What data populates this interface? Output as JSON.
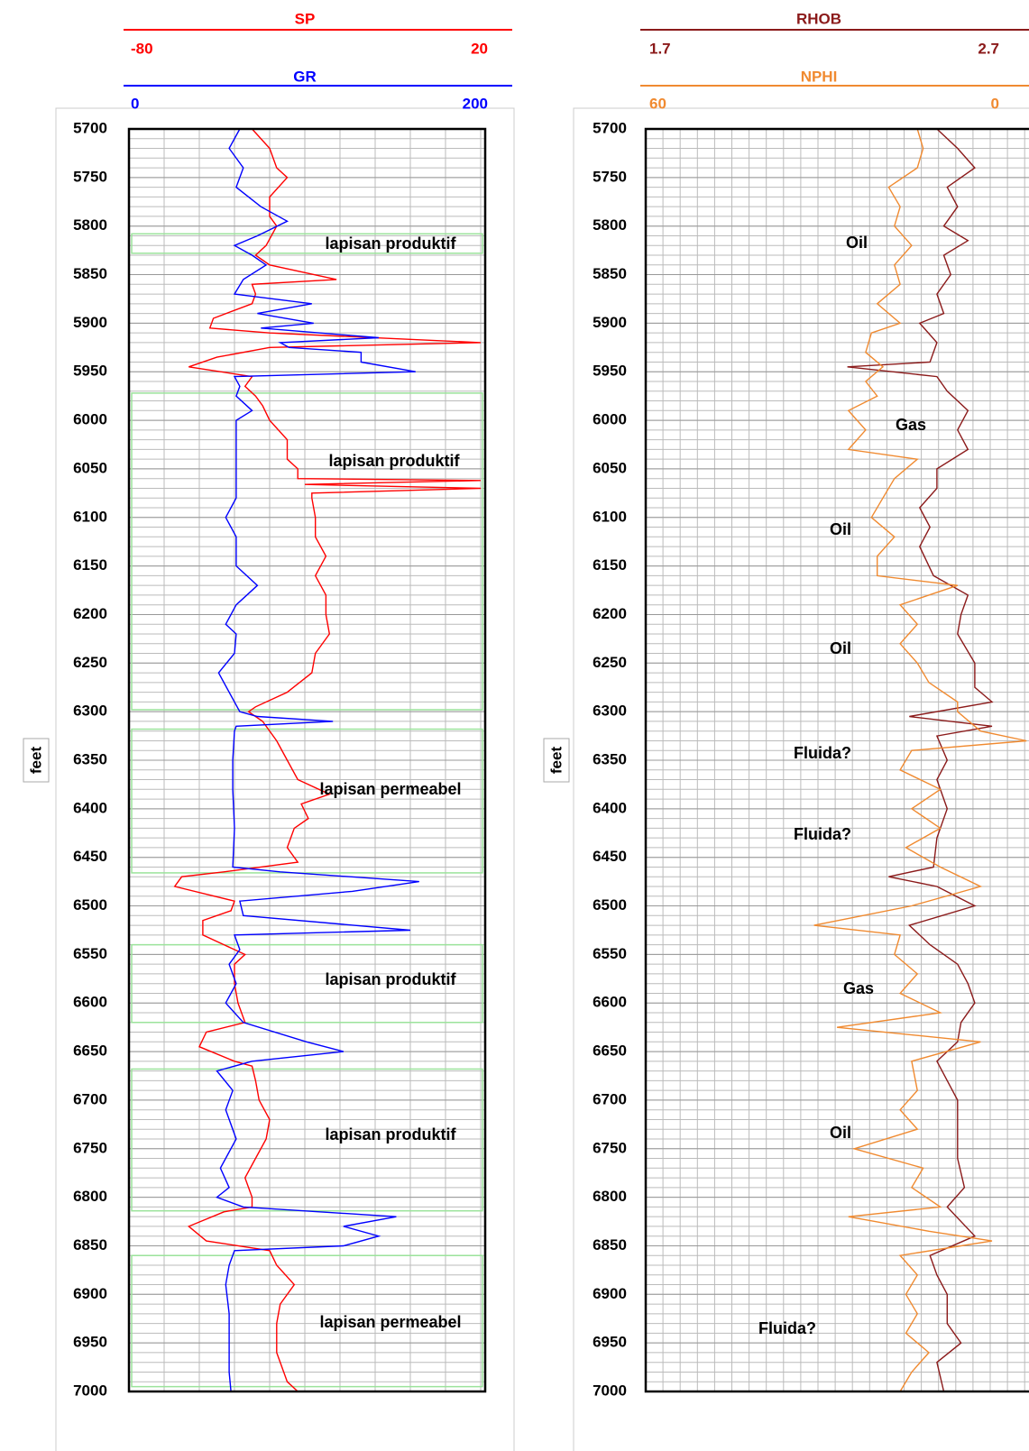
{
  "chart_data": [
    {
      "type": "well-log",
      "ylabel": "feet",
      "ylim": [
        5700,
        7000
      ],
      "yticks": [
        5700,
        5750,
        5800,
        5850,
        5900,
        5950,
        6000,
        6050,
        6100,
        6150,
        6200,
        6250,
        6300,
        6350,
        6400,
        6450,
        6500,
        6550,
        6600,
        6650,
        6700,
        6750,
        6800,
        6850,
        6900,
        6950,
        7000
      ],
      "zones": [
        [
          5808,
          5828
        ],
        [
          5972,
          6298
        ],
        [
          6318,
          6466
        ],
        [
          6540,
          6620
        ],
        [
          6668,
          6814
        ],
        [
          6860,
          6995
        ]
      ],
      "annotations": [
        "lapisan produktif",
        "lapisan produktif",
        "lapisan permeabel",
        "lapisan produktif",
        "lapisan produktif",
        "lapisan permeabel"
      ],
      "series": [
        {
          "name": "SP",
          "color": "#ff0000",
          "xlim": [
            -80,
            20
          ],
          "xticks": [
            -80,
            20
          ],
          "depth": [
            5700,
            5720,
            5740,
            5750,
            5770,
            5790,
            5800,
            5820,
            5830,
            5840,
            5855,
            5860,
            5870,
            5880,
            5895,
            5905,
            5910,
            5920,
            5925,
            5935,
            5945,
            5955,
            5965,
            5975,
            5985,
            6000,
            6020,
            6040,
            6050,
            6060,
            6062,
            6066,
            6070,
            6075,
            6080,
            6100,
            6120,
            6140,
            6160,
            6180,
            6200,
            6220,
            6240,
            6260,
            6280,
            6295,
            6300,
            6310,
            6330,
            6350,
            6370,
            6385,
            6395,
            6410,
            6420,
            6440,
            6455,
            6465,
            6470,
            6480,
            6495,
            6505,
            6515,
            6530,
            6540,
            6550,
            6560,
            6580,
            6600,
            6620,
            6630,
            6645,
            6660,
            6665,
            6680,
            6700,
            6720,
            6740,
            6760,
            6780,
            6800,
            6810,
            6815,
            6830,
            6845,
            6855,
            6870,
            6890,
            6910,
            6930,
            6960,
            6990,
            7000
          ],
          "values": [
            -45,
            -40,
            -38,
            -35,
            -40,
            -40,
            -38,
            -41,
            -44,
            -40,
            -21,
            -45,
            -44,
            -45,
            -56,
            -57,
            -40,
            20,
            -40,
            -55,
            -63,
            -45,
            -47,
            -44,
            -42,
            -40,
            -35,
            -35,
            -32,
            -32,
            20,
            -30,
            20,
            -28,
            -28,
            -27,
            -27,
            -24,
            -27,
            -24,
            -24,
            -23,
            -27,
            -28,
            -35,
            -44,
            -46,
            -42,
            -38,
            -35,
            -32,
            -23,
            -31,
            -29,
            -33,
            -35,
            -32,
            -53,
            -65,
            -67,
            -50,
            -51,
            -59,
            -59,
            -53,
            -47,
            -50,
            -50,
            -49,
            -47,
            -58,
            -60,
            -50,
            -45,
            -44,
            -43,
            -40,
            -41,
            -44,
            -47,
            -45,
            -45,
            -53,
            -63,
            -58,
            -40,
            -38,
            -33,
            -37,
            -38,
            -38,
            -35,
            -32
          ]
        },
        {
          "name": "GR",
          "color": "#0000ff",
          "xlim": [
            0,
            200
          ],
          "xticks": [
            0,
            200
          ],
          "depth": [
            5700,
            5720,
            5740,
            5760,
            5780,
            5795,
            5810,
            5820,
            5830,
            5840,
            5855,
            5870,
            5880,
            5890,
            5900,
            5905,
            5915,
            5920,
            5925,
            5930,
            5940,
            5950,
            5955,
            5965,
            5975,
            5990,
            6000,
            6050,
            6080,
            6100,
            6120,
            6150,
            6170,
            6190,
            6210,
            6220,
            6240,
            6260,
            6280,
            6300,
            6305,
            6310,
            6315,
            6320,
            6350,
            6380,
            6420,
            6460,
            6465,
            6475,
            6485,
            6495,
            6510,
            6525,
            6530,
            6545,
            6560,
            6580,
            6600,
            6620,
            6640,
            6650,
            6660,
            6670,
            6690,
            6710,
            6740,
            6770,
            6790,
            6800,
            6810,
            6820,
            6830,
            6840,
            6850,
            6855,
            6870,
            6890,
            6920,
            6950,
            6980,
            7000
          ],
          "values": [
            63,
            57,
            65,
            61,
            75,
            90,
            73,
            60,
            70,
            78,
            65,
            60,
            104,
            73,
            105,
            75,
            142,
            86,
            91,
            132,
            132,
            163,
            60,
            63,
            61,
            70,
            61,
            61,
            61,
            55,
            61,
            61,
            73,
            61,
            55,
            61,
            60,
            51,
            57,
            63,
            73,
            116,
            61,
            60,
            59,
            59,
            60,
            59,
            86,
            165,
            127,
            63,
            65,
            160,
            60,
            63,
            57,
            61,
            55,
            65,
            101,
            122,
            70,
            50,
            59,
            55,
            61,
            52,
            57,
            50,
            65,
            152,
            122,
            142,
            122,
            60,
            57,
            55,
            57,
            57,
            57,
            58
          ]
        }
      ]
    },
    {
      "type": "well-log",
      "ylabel": "feet",
      "ylim": [
        5700,
        7000
      ],
      "yticks": [
        5700,
        5750,
        5800,
        5850,
        5900,
        5950,
        6000,
        6050,
        6100,
        6150,
        6200,
        6250,
        6300,
        6350,
        6400,
        6450,
        6500,
        6550,
        6600,
        6650,
        6700,
        6750,
        6800,
        6850,
        6900,
        6950,
        7000
      ],
      "annotations": [
        "Oil",
        "Gas",
        "Oil",
        "Oil",
        "Fluida?",
        "Fluida?",
        "Gas",
        "Oil",
        "Fluida?"
      ],
      "series": [
        {
          "name": "RHOB",
          "color": "#8b1a1a",
          "xlim": [
            1.7,
            2.7
          ],
          "xticks": [
            1.7,
            2.7
          ],
          "depth": [
            5700,
            5720,
            5740,
            5760,
            5780,
            5800,
            5815,
            5830,
            5850,
            5870,
            5890,
            5900,
            5920,
            5940,
            5945,
            5955,
            5970,
            5990,
            6010,
            6030,
            6050,
            6070,
            6090,
            6110,
            6130,
            6160,
            6180,
            6200,
            6220,
            6250,
            6275,
            6290,
            6305,
            6315,
            6325,
            6350,
            6370,
            6400,
            6430,
            6460,
            6470,
            6480,
            6500,
            6520,
            6540,
            6560,
            6580,
            6600,
            6620,
            6640,
            6660,
            6700,
            6730,
            6760,
            6790,
            6810,
            6840,
            6860,
            6880,
            6900,
            6930,
            6950,
            6970,
            7000
          ],
          "values": [
            2.54,
            2.6,
            2.65,
            2.57,
            2.6,
            2.56,
            2.63,
            2.56,
            2.58,
            2.54,
            2.56,
            2.49,
            2.54,
            2.52,
            2.28,
            2.54,
            2.57,
            2.63,
            2.6,
            2.63,
            2.54,
            2.54,
            2.49,
            2.52,
            2.49,
            2.53,
            2.63,
            2.61,
            2.6,
            2.65,
            2.65,
            2.7,
            2.46,
            2.7,
            2.54,
            2.57,
            2.54,
            2.57,
            2.54,
            2.53,
            2.4,
            2.54,
            2.65,
            2.46,
            2.52,
            2.6,
            2.63,
            2.65,
            2.61,
            2.6,
            2.54,
            2.6,
            2.6,
            2.6,
            2.62,
            2.57,
            2.65,
            2.52,
            2.54,
            2.57,
            2.57,
            2.61,
            2.54,
            2.56
          ]
        },
        {
          "name": "NPHI",
          "color": "#f08a30",
          "xlim": [
            60,
            0
          ],
          "xticks": [
            60,
            0
          ],
          "depth": [
            5700,
            5720,
            5740,
            5760,
            5780,
            5800,
            5820,
            5840,
            5860,
            5880,
            5900,
            5910,
            5930,
            5945,
            5960,
            5975,
            5990,
            6010,
            6030,
            6040,
            6060,
            6080,
            6100,
            6120,
            6140,
            6160,
            6170,
            6190,
            6210,
            6230,
            6250,
            6270,
            6290,
            6300,
            6320,
            6330,
            6340,
            6360,
            6380,
            6400,
            6420,
            6440,
            6460,
            6480,
            6500,
            6520,
            6530,
            6550,
            6570,
            6590,
            6610,
            6625,
            6640,
            6660,
            6690,
            6710,
            6730,
            6750,
            6770,
            6790,
            6810,
            6820,
            6835,
            6845,
            6860,
            6880,
            6900,
            6920,
            6940,
            6960,
            6980,
            7000
          ],
          "values": [
            13,
            12,
            13,
            18,
            16,
            17,
            14,
            17,
            16,
            20,
            16,
            21,
            22,
            19,
            22,
            20,
            25,
            22,
            25,
            13,
            17,
            19,
            21,
            17,
            20,
            20,
            6,
            16,
            13,
            16,
            13,
            11,
            6,
            6,
            2,
            -6,
            14,
            16,
            9,
            14,
            9,
            15,
            9,
            2,
            14,
            31,
            16,
            17,
            13,
            16,
            9,
            27,
            2,
            14,
            13,
            16,
            13,
            24,
            12,
            14,
            9,
            25,
            11,
            0,
            16,
            13,
            15,
            13,
            15,
            11,
            14,
            16
          ]
        }
      ]
    }
  ]
}
